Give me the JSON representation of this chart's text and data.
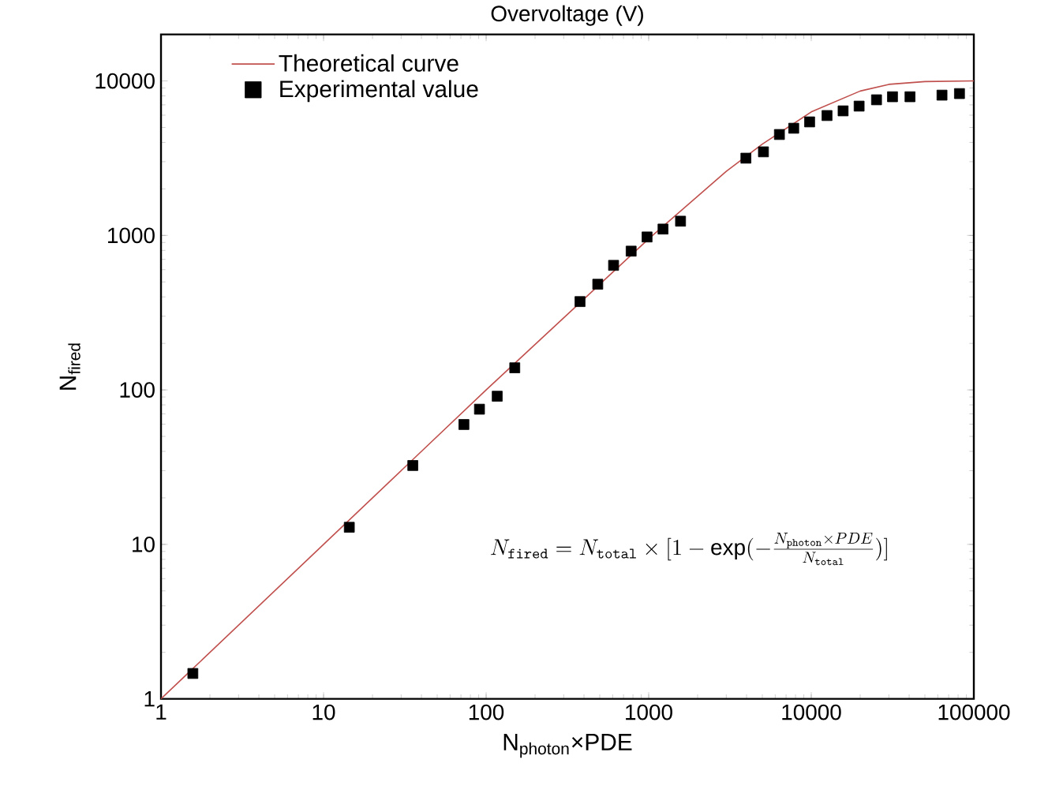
{
  "chart_data": {
    "type": "scatter",
    "title": "Overvoltage (V)",
    "xlabel": "N$_{photon}$×PDE",
    "ylabel": "N$_{fired}$",
    "log": "xy",
    "xlim": [
      1,
      100000
    ],
    "ylim": [
      1,
      20000
    ],
    "xticks": [
      1,
      10,
      100,
      1000,
      10000,
      100000
    ],
    "yticks": [
      1,
      10,
      100,
      1000,
      10000
    ],
    "legend": "top left",
    "annotations": [
      "N_{\\mathtt{fired}} = N_{\\mathtt{total}} \\times [1-\\exp(-\\frac{N_{\\mathtt{photon}}\\times PDE}{N_{\\mathtt{total}}})]"
    ],
    "series": [
      {
        "name": "Theoretical curve",
        "type": "line",
        "marker": "none",
        "color": "#c0504d",
        "x": [
          1,
          1.5,
          10,
          100,
          1000,
          3000,
          5000,
          10000,
          20000,
          30000,
          50000,
          100000
        ],
        "values": [
          1,
          1.5,
          10,
          100,
          950,
          2600,
          3900,
          6300,
          8600,
          9500,
          9900,
          10000
        ]
      },
      {
        "name": "Experimental value",
        "marker": "square",
        "color": "#000000",
        "x": [
          1.57,
          14.4,
          35.4,
          73,
          91,
          117,
          150,
          378,
          486,
          608,
          780,
          977,
          1225,
          1570,
          3963,
          5080,
          6370,
          7800,
          9770,
          12500,
          15700,
          19700,
          25200,
          31600,
          40500,
          63700,
          81600
        ],
        "values": [
          1.46,
          12.9,
          32.4,
          59.7,
          75,
          91,
          139,
          373,
          483,
          640,
          791,
          977,
          1099,
          1236,
          3162,
          3476,
          4500,
          4940,
          5430,
          5970,
          6400,
          6870,
          7550,
          7900,
          7900,
          8090,
          8280
        ]
      }
    ]
  }
}
